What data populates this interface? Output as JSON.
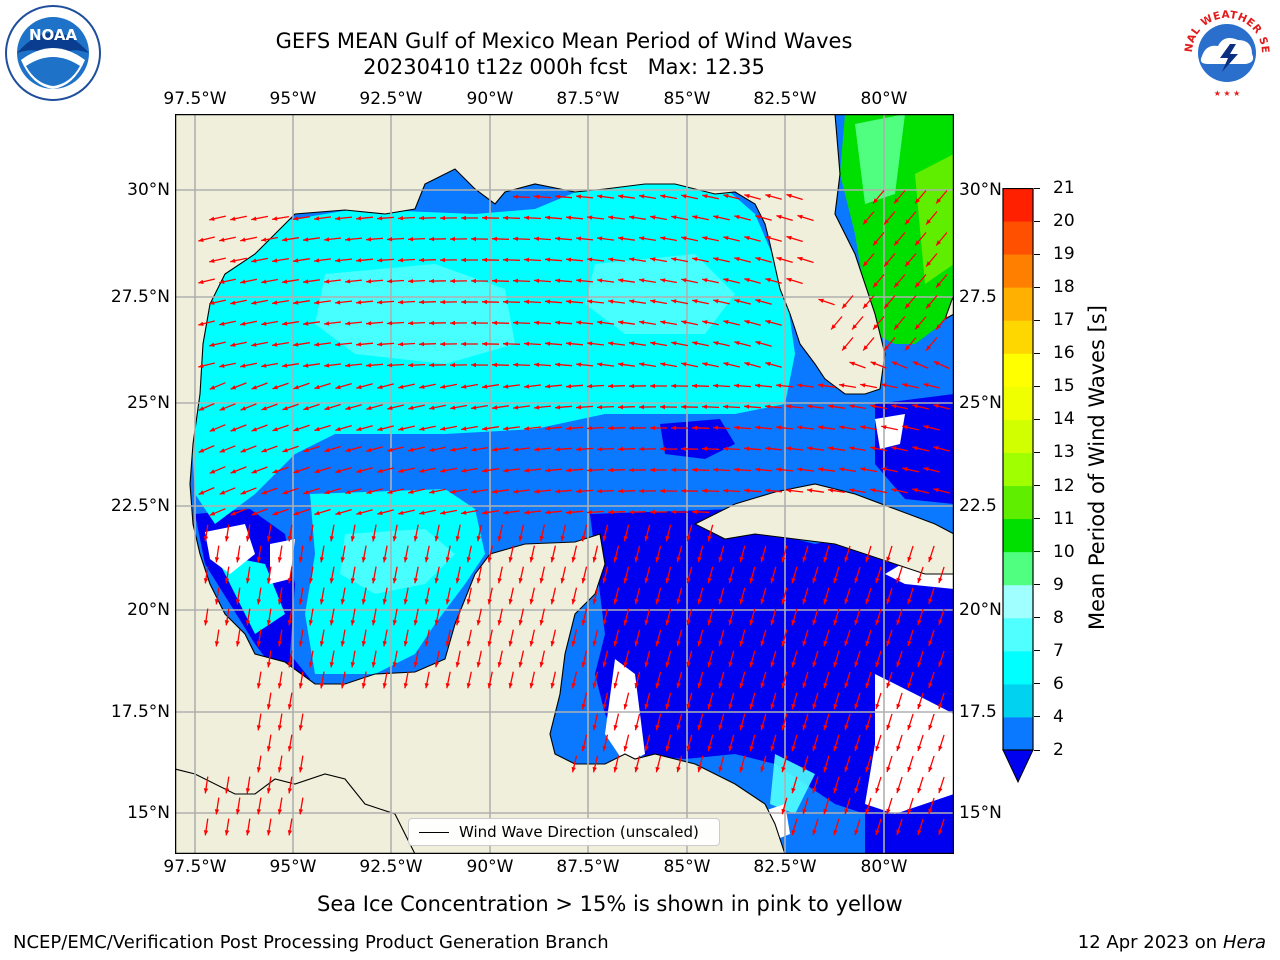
{
  "header": {
    "title_line1": "GEFS MEAN Gulf of Mexico Mean Period of Wind Waves",
    "title_line2": "20230410 t12z 000h fcst   Max: 12.35"
  },
  "map": {
    "x_ticks": [
      "97.5°W",
      "95°W",
      "92.5°W",
      "90°W",
      "87.5°W",
      "85°W",
      "82.5°W",
      "80°W"
    ],
    "y_ticks_left": [
      "30°N",
      "27.5°N",
      "25°N",
      "22.5°N",
      "20°N",
      "17.5°N",
      "15°N"
    ],
    "y_ticks_right": [
      "30°N",
      "27.5",
      "25°N",
      "22.5",
      "20°N",
      "17.5",
      "15°N"
    ],
    "land_color": "#efefdb",
    "grid_color": "#b0b0b0",
    "arrow_color": "#ff0000"
  },
  "legend": {
    "label": "Wind Wave Direction (unscaled)"
  },
  "colorbar": {
    "label": "Mean Period of Wind Waves [s]",
    "ticks": [
      "2",
      "4",
      "6",
      "7",
      "8",
      "9",
      "10",
      "11",
      "12",
      "13",
      "14",
      "15",
      "16",
      "17",
      "18",
      "19",
      "20",
      "21"
    ],
    "colors": [
      "#0a78ff",
      "#00d2f0",
      "#00ffff",
      "#50ffff",
      "#a0ffff",
      "#50ff80",
      "#00e000",
      "#60ee00",
      "#a0ff00",
      "#d2ff00",
      "#f0ff00",
      "#ffff00",
      "#ffd700",
      "#ffb000",
      "#ff8000",
      "#ff5000",
      "#ff2000"
    ],
    "under_color": "#0000f0"
  },
  "note": "Sea Ice Concentration > 15% is shown in pink to yellow",
  "footer": {
    "left": "NCEP/EMC/Verification Post Processing Product Generation Branch",
    "date": "12 Apr 2023 on",
    "host": "Hera"
  },
  "logos": {
    "noaa_text": "NOAA",
    "nws_text": "NATIONAL WEATHER SERVICE"
  }
}
